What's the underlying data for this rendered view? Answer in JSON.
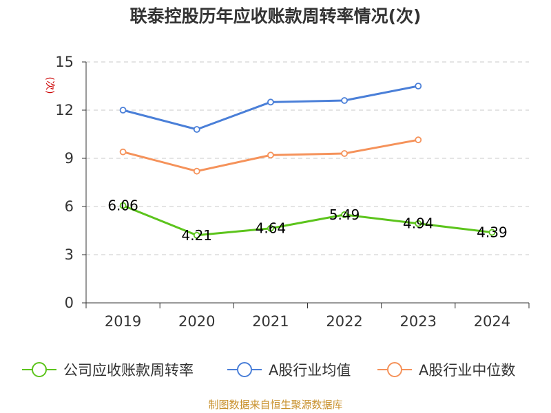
{
  "title": "联泰控股历年应收账款周转率情况(次)",
  "footer": "制图数据来自恒生聚源数据库",
  "chart_data": {
    "type": "line",
    "title": "联泰控股历年应收账款周转率情况(次)",
    "ylabel": "(次)",
    "xlabel": "",
    "categories": [
      "2019",
      "2020",
      "2021",
      "2022",
      "2023",
      "2024"
    ],
    "ylim": [
      0,
      15
    ],
    "yticks": [
      0,
      3,
      6,
      9,
      12,
      15
    ],
    "grid": "horizontal dashed",
    "legend_position": "bottom",
    "series": [
      {
        "name": "公司应收账款周转率",
        "color": "#5cc41c",
        "values": [
          6.06,
          4.21,
          4.64,
          5.49,
          4.94,
          4.39
        ],
        "labels": [
          "6.06",
          "4.21",
          "4.64",
          "5.49",
          "4.94",
          "4.39"
        ]
      },
      {
        "name": "A股行业均值",
        "color": "#4a7fd8",
        "values": [
          12.0,
          10.8,
          12.5,
          12.6,
          13.5,
          null
        ]
      },
      {
        "name": "A股行业中位数",
        "color": "#f5925a",
        "values": [
          9.4,
          8.2,
          9.2,
          9.3,
          10.15,
          null
        ]
      }
    ]
  }
}
